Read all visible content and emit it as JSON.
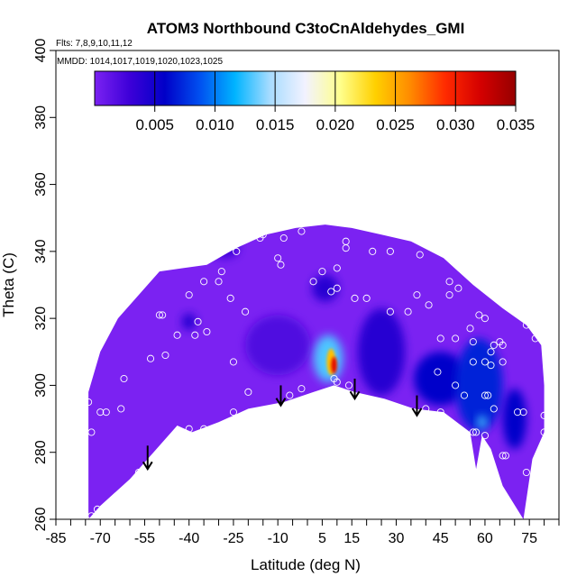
{
  "chart_data": {
    "type": "heatmap",
    "title": "ATOM3 Northbound C3toCnAldehydes_GMI",
    "flights_note": "Flts: 7,8,9,10,11,12",
    "mmdd_note": "MMDD: 1014,1017,1019,1020,1023,1025",
    "xlabel": "Latitude (deg N)",
    "ylabel": "Theta (C)",
    "xlim": [
      -85,
      85
    ],
    "ylim": [
      260,
      400
    ],
    "x_ticks": [
      -85,
      -70,
      -55,
      -40,
      -25,
      -10,
      5,
      15,
      30,
      45,
      60,
      75
    ],
    "y_ticks": [
      260,
      280,
      300,
      320,
      340,
      360,
      380,
      400
    ],
    "colorbar": {
      "ticks": [
        0.005,
        0.01,
        0.015,
        0.02,
        0.025,
        0.03,
        0.035
      ],
      "tick_labels": [
        "0.005",
        "0.010",
        "0.015",
        "0.020",
        "0.025",
        "0.030",
        "0.035"
      ],
      "min": 0.0,
      "max": 0.035,
      "colors": [
        "#7b22f2",
        "#3d00d8",
        "#0000c8",
        "#0050f0",
        "#00b4ff",
        "#a8dcff",
        "#f2f2ff",
        "#ffff8c",
        "#ffd000",
        "#ff8a00",
        "#ff2a00",
        "#d40000",
        "#960000"
      ]
    },
    "field_upper_boundary": [
      {
        "lat": -74,
        "theta": 298
      },
      {
        "lat": -70,
        "theta": 310
      },
      {
        "lat": -64,
        "theta": 320
      },
      {
        "lat": -56,
        "theta": 328
      },
      {
        "lat": -50,
        "theta": 334
      },
      {
        "lat": -42,
        "theta": 335
      },
      {
        "lat": -34,
        "theta": 336
      },
      {
        "lat": -24,
        "theta": 341
      },
      {
        "lat": -14,
        "theta": 345
      },
      {
        "lat": -4,
        "theta": 347
      },
      {
        "lat": 6,
        "theta": 348
      },
      {
        "lat": 15,
        "theta": 347
      },
      {
        "lat": 25,
        "theta": 345
      },
      {
        "lat": 35,
        "theta": 343
      },
      {
        "lat": 46,
        "theta": 338
      },
      {
        "lat": 56,
        "theta": 330
      },
      {
        "lat": 66,
        "theta": 323
      },
      {
        "lat": 74,
        "theta": 318
      },
      {
        "lat": 79,
        "theta": 312
      },
      {
        "lat": 80,
        "theta": 300
      }
    ],
    "field_lower_boundary": [
      {
        "lat": 80,
        "theta": 286
      },
      {
        "lat": 76,
        "theta": 278
      },
      {
        "lat": 73,
        "theta": 260
      },
      {
        "lat": 66,
        "theta": 270
      },
      {
        "lat": 62,
        "theta": 281
      },
      {
        "lat": 59,
        "theta": 285
      },
      {
        "lat": 57,
        "theta": 275
      },
      {
        "lat": 55,
        "theta": 286
      },
      {
        "lat": 46,
        "theta": 292
      },
      {
        "lat": 36,
        "theta": 293
      },
      {
        "lat": 26,
        "theta": 296
      },
      {
        "lat": 16,
        "theta": 298
      },
      {
        "lat": 9,
        "theta": 300
      },
      {
        "lat": 2,
        "theta": 298
      },
      {
        "lat": -8,
        "theta": 295
      },
      {
        "lat": -20,
        "theta": 293
      },
      {
        "lat": -30,
        "theta": 289
      },
      {
        "lat": -39,
        "theta": 286
      },
      {
        "lat": -44,
        "theta": 288
      },
      {
        "lat": -52,
        "theta": 280
      },
      {
        "lat": -60,
        "theta": 272
      },
      {
        "lat": -70,
        "theta": 264
      },
      {
        "lat": -74,
        "theta": 260
      }
    ],
    "field_features": [
      {
        "lat": -40,
        "theta": 319,
        "value": 0.004,
        "size_lat": 5,
        "size_theta": 5
      },
      {
        "lat": -28,
        "theta": 341,
        "value": 0.003,
        "size_lat": 10,
        "size_theta": 6
      },
      {
        "lat": -10,
        "theta": 312,
        "value": 0.002,
        "size_lat": 22,
        "size_theta": 18
      },
      {
        "lat": 6,
        "theta": 329,
        "value": 0.004,
        "size_lat": 9,
        "size_theta": 8
      },
      {
        "lat": 7,
        "theta": 308,
        "value": 0.013,
        "size_lat": 10,
        "size_theta": 14
      },
      {
        "lat": 8,
        "theta": 307,
        "value": 0.024,
        "size_lat": 3,
        "size_theta": 8
      },
      {
        "lat": 9,
        "theta": 306,
        "value": 0.031,
        "size_lat": 2,
        "size_theta": 5
      },
      {
        "lat": 25,
        "theta": 310,
        "value": 0.004,
        "size_lat": 16,
        "size_theta": 26
      },
      {
        "lat": 45,
        "theta": 302,
        "value": 0.006,
        "size_lat": 18,
        "size_theta": 16
      },
      {
        "lat": 58,
        "theta": 300,
        "value": 0.007,
        "size_lat": 16,
        "size_theta": 28
      },
      {
        "lat": 59,
        "theta": 289,
        "value": 0.013,
        "size_lat": 3,
        "size_theta": 4
      },
      {
        "lat": 70,
        "theta": 290,
        "value": 0.006,
        "size_lat": 8,
        "size_theta": 18
      }
    ],
    "observation_points": [
      {
        "lat": -72,
        "theta": 311
      },
      {
        "lat": -74,
        "theta": 295
      },
      {
        "lat": -73,
        "theta": 286
      },
      {
        "lat": -70,
        "theta": 292
      },
      {
        "lat": -68,
        "theta": 292
      },
      {
        "lat": -63,
        "theta": 293
      },
      {
        "lat": -62,
        "theta": 302
      },
      {
        "lat": -53,
        "theta": 308
      },
      {
        "lat": -50,
        "theta": 321
      },
      {
        "lat": -49,
        "theta": 321
      },
      {
        "lat": -44,
        "theta": 315
      },
      {
        "lat": -48,
        "theta": 309
      },
      {
        "lat": -40,
        "theta": 327
      },
      {
        "lat": -35,
        "theta": 331
      },
      {
        "lat": -30,
        "theta": 331
      },
      {
        "lat": -29,
        "theta": 334
      },
      {
        "lat": -26,
        "theta": 326
      },
      {
        "lat": -21,
        "theta": 322
      },
      {
        "lat": -25,
        "theta": 307
      },
      {
        "lat": -38,
        "theta": 315
      },
      {
        "lat": -37,
        "theta": 319
      },
      {
        "lat": -34,
        "theta": 316
      },
      {
        "lat": -24,
        "theta": 340
      },
      {
        "lat": -16,
        "theta": 344
      },
      {
        "lat": -15,
        "theta": 345
      },
      {
        "lat": -10,
        "theta": 338
      },
      {
        "lat": -8,
        "theta": 344
      },
      {
        "lat": -9,
        "theta": 336
      },
      {
        "lat": -2,
        "theta": 346
      },
      {
        "lat": 2,
        "theta": 331
      },
      {
        "lat": 5,
        "theta": 334
      },
      {
        "lat": 8,
        "theta": 328
      },
      {
        "lat": 10,
        "theta": 329
      },
      {
        "lat": 10,
        "theta": 335
      },
      {
        "lat": 13,
        "theta": 343
      },
      {
        "lat": 13,
        "theta": 341
      },
      {
        "lat": 16,
        "theta": 326
      },
      {
        "lat": 20,
        "theta": 326
      },
      {
        "lat": 22,
        "theta": 340
      },
      {
        "lat": 28,
        "theta": 340
      },
      {
        "lat": 28,
        "theta": 322
      },
      {
        "lat": 38,
        "theta": 339
      },
      {
        "lat": 37,
        "theta": 327
      },
      {
        "lat": 34,
        "theta": 322
      },
      {
        "lat": 41,
        "theta": 324
      },
      {
        "lat": 48,
        "theta": 331
      },
      {
        "lat": 51,
        "theta": 329
      },
      {
        "lat": 48,
        "theta": 327
      },
      {
        "lat": 50,
        "theta": 314
      },
      {
        "lat": 45,
        "theta": 314
      },
      {
        "lat": 55,
        "theta": 317
      },
      {
        "lat": 58,
        "theta": 321
      },
      {
        "lat": 60,
        "theta": 320
      },
      {
        "lat": 56,
        "theta": 313
      },
      {
        "lat": 62,
        "theta": 310
      },
      {
        "lat": 63,
        "theta": 312
      },
      {
        "lat": 65,
        "theta": 313
      },
      {
        "lat": 66,
        "theta": 312
      },
      {
        "lat": 60,
        "theta": 307
      },
      {
        "lat": 66,
        "theta": 307
      },
      {
        "lat": 62,
        "theta": 306
      },
      {
        "lat": 56,
        "theta": 307
      },
      {
        "lat": 74,
        "theta": 318
      },
      {
        "lat": 77,
        "theta": 314
      },
      {
        "lat": 79,
        "theta": 319
      },
      {
        "lat": 44,
        "theta": 304
      },
      {
        "lat": 50,
        "theta": 300
      },
      {
        "lat": 53,
        "theta": 297
      },
      {
        "lat": 60,
        "theta": 297
      },
      {
        "lat": 61,
        "theta": 297
      },
      {
        "lat": 63,
        "theta": 293
      },
      {
        "lat": 73,
        "theta": 292
      },
      {
        "lat": 80,
        "theta": 291
      },
      {
        "lat": 80,
        "theta": 286
      },
      {
        "lat": 56,
        "theta": 286
      },
      {
        "lat": 57,
        "theta": 286
      },
      {
        "lat": 60,
        "theta": 285
      },
      {
        "lat": 67,
        "theta": 279
      },
      {
        "lat": 66,
        "theta": 279
      },
      {
        "lat": 74,
        "theta": 274
      },
      {
        "lat": 71,
        "theta": 292
      },
      {
        "lat": 40,
        "theta": 293
      },
      {
        "lat": 45,
        "theta": 292
      },
      {
        "lat": 36,
        "theta": 292
      },
      {
        "lat": 16,
        "theta": 296
      },
      {
        "lat": 14,
        "theta": 300
      },
      {
        "lat": 9,
        "theta": 302
      },
      {
        "lat": 10,
        "theta": 301
      },
      {
        "lat": -2,
        "theta": 299
      },
      {
        "lat": -6,
        "theta": 297
      },
      {
        "lat": -20,
        "theta": 298
      },
      {
        "lat": -25,
        "theta": 292
      },
      {
        "lat": -35,
        "theta": 287
      },
      {
        "lat": -40,
        "theta": 287
      },
      {
        "lat": -57,
        "theta": 274
      },
      {
        "lat": -60,
        "theta": 270
      },
      {
        "lat": -71,
        "theta": 263
      },
      {
        "lat": -73,
        "theta": 261
      }
    ],
    "arrows": [
      {
        "lat": -54,
        "theta_from": 282,
        "theta_to": 275
      },
      {
        "lat": -9,
        "theta_from": 300,
        "theta_to": 294
      },
      {
        "lat": 16,
        "theta_from": 302,
        "theta_to": 296
      },
      {
        "lat": 37,
        "theta_from": 297,
        "theta_to": 291
      }
    ]
  }
}
